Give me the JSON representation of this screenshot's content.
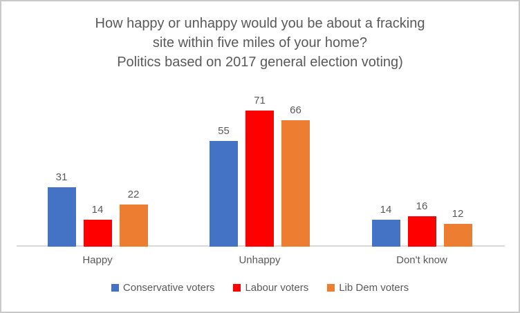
{
  "frame": {
    "background": "#ffffff",
    "border_color": "#c9c9c9"
  },
  "chart_data": {
    "type": "bar",
    "title": "How happy or unhappy would you be about a fracking site within five miles of your home? Politics based on 2017 general election voting)",
    "title_lines": [
      "How happy or unhappy would you be about a fracking",
      "site within five miles of your home?",
      "Politics based on 2017 general election voting)"
    ],
    "categories": [
      "Happy",
      "Unhappy",
      "Don't know"
    ],
    "series": [
      {
        "name": "Conservative voters",
        "color": "#4472C4",
        "values": [
          31,
          55,
          14
        ]
      },
      {
        "name": "Labour voters",
        "color": "#FF0000",
        "values": [
          14,
          71,
          16
        ]
      },
      {
        "name": "Lib Dem voters",
        "color": "#ED7D31",
        "values": [
          22,
          66,
          12
        ]
      }
    ],
    "data_labels": true,
    "ylim": [
      0,
      80
    ],
    "grid": false,
    "legend_position": "bottom",
    "axis_line_color": "#D9D9D9",
    "text_color": "#595959"
  }
}
